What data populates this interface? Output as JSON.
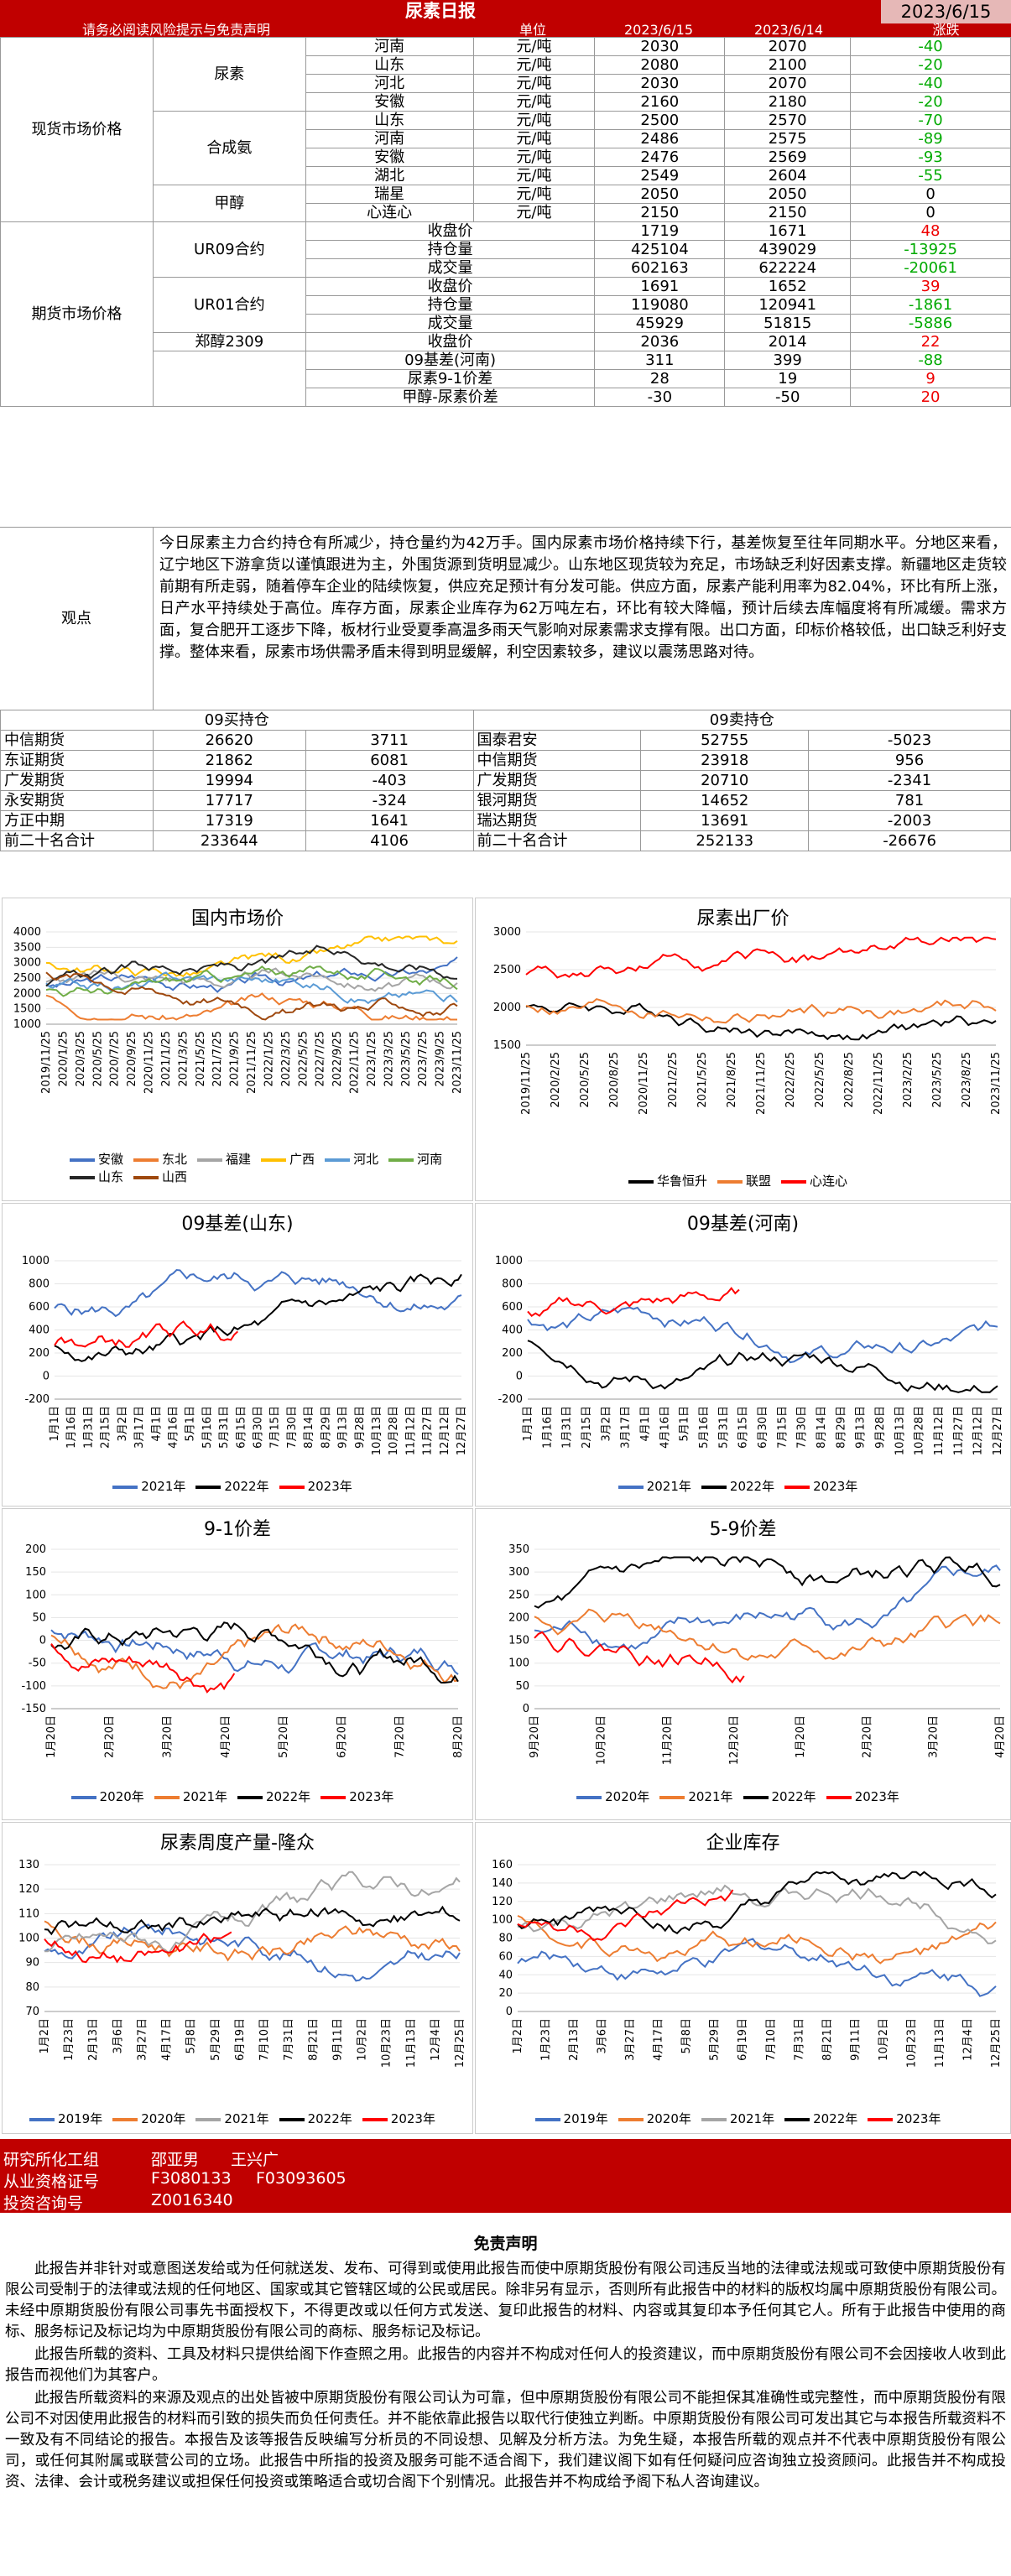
{
  "header": {
    "title": "尿素日报",
    "date": "2023/6/15",
    "note": "请务必阅读风险提示与免责声明",
    "col_unit": "单位",
    "col_d1": "2023/6/15",
    "col_d2": "2023/6/14",
    "col_chg": "涨跌"
  },
  "spot_label": "现货市场价格",
  "futures_label": "期货市场价格",
  "spot": [
    {
      "grp": "尿素",
      "name": "河南",
      "unit": "元/吨",
      "v1": "2030",
      "v2": "2070",
      "chg": "-40"
    },
    {
      "grp": "",
      "name": "山东",
      "unit": "元/吨",
      "v1": "2080",
      "v2": "2100",
      "chg": "-20"
    },
    {
      "grp": "",
      "name": "河北",
      "unit": "元/吨",
      "v1": "2030",
      "v2": "2070",
      "chg": "-40"
    },
    {
      "grp": "",
      "name": "安徽",
      "unit": "元/吨",
      "v1": "2160",
      "v2": "2180",
      "chg": "-20"
    },
    {
      "grp": "合成氨",
      "name": "山东",
      "unit": "元/吨",
      "v1": "2500",
      "v2": "2570",
      "chg": "-70"
    },
    {
      "grp": "",
      "name": "河南",
      "unit": "元/吨",
      "v1": "2486",
      "v2": "2575",
      "chg": "-89"
    },
    {
      "grp": "",
      "name": "安徽",
      "unit": "元/吨",
      "v1": "2476",
      "v2": "2569",
      "chg": "-93"
    },
    {
      "grp": "",
      "name": "湖北",
      "unit": "元/吨",
      "v1": "2549",
      "v2": "2604",
      "chg": "-55"
    },
    {
      "grp": "甲醇",
      "name": "瑞星",
      "unit": "元/吨",
      "v1": "2050",
      "v2": "2050",
      "chg": "0"
    },
    {
      "grp": "",
      "name": "心连心",
      "unit": "元/吨",
      "v1": "2150",
      "v2": "2150",
      "chg": "0"
    }
  ],
  "futures": [
    {
      "grp": "UR09合约",
      "name": "收盘价",
      "v1": "1719",
      "v2": "1671",
      "chg": "48"
    },
    {
      "grp": "",
      "name": "持仓量",
      "v1": "425104",
      "v2": "439029",
      "chg": "-13925"
    },
    {
      "grp": "",
      "name": "成交量",
      "v1": "602163",
      "v2": "622224",
      "chg": "-20061"
    },
    {
      "grp": "UR01合约",
      "name": "收盘价",
      "v1": "1691",
      "v2": "1652",
      "chg": "39"
    },
    {
      "grp": "",
      "name": "持仓量",
      "v1": "119080",
      "v2": "120941",
      "chg": "-1861"
    },
    {
      "grp": "",
      "name": "成交量",
      "v1": "45929",
      "v2": "51815",
      "chg": "-5886"
    },
    {
      "grp": "郑醇2309",
      "name": "收盘价",
      "v1": "2036",
      "v2": "2014",
      "chg": "22"
    },
    {
      "grp": "",
      "name": "09基差(河南)",
      "v1": "311",
      "v2": "399",
      "chg": "-88"
    },
    {
      "grp": "",
      "name": "尿素9-1价差",
      "v1": "28",
      "v2": "19",
      "chg": "9"
    },
    {
      "grp": "",
      "name": "甲醇-尿素价差",
      "v1": "-30",
      "v2": "-50",
      "chg": "20"
    }
  ],
  "observation": {
    "label": "观点",
    "text": "今日尿素主力合约持仓有所减少，持仓量约为42万手。国内尿素市场价格持续下行，基差恢复至往年同期水平。分地区来看，辽宁地区下游拿货以谨慎跟进为主，外围货源到货明显减少。山东地区现货较为充足，市场缺乏利好因素支撑。新疆地区走货较前期有所走弱，随着停车企业的陆续恢复，供应充足预计有分发可能。供应方面，尿素产能利用率为82.04%，环比有所上涨，日产水平持续处于高位。库存方面，尿素企业库存为62万吨左右，环比有较大降幅，预计后续去库幅度将有所减缓。需求方面，复合肥开工逐步下降，板材行业受夏季高温多雨天气影响对尿素需求支撑有限。出口方面，印标价格较低，出口缺乏利好支撑。整体来看，尿素市场供需矛盾未得到明显缓解，利空因素较多，建议以震荡思路对待。"
  },
  "positions": {
    "buy_title": "09买持仓",
    "sell_title": "09卖持仓",
    "buy": [
      [
        "中信期货",
        "26620",
        "3711"
      ],
      [
        "东证期货",
        "21862",
        "6081"
      ],
      [
        "广发期货",
        "19994",
        "-403"
      ],
      [
        "永安期货",
        "17717",
        "-324"
      ],
      [
        "方正中期",
        "17319",
        "1641"
      ],
      [
        "前二十名合计",
        "233644",
        "4106"
      ]
    ],
    "sell": [
      [
        "国泰君安",
        "52755",
        "-5023"
      ],
      [
        "中信期货",
        "23918",
        "956"
      ],
      [
        "广发期货",
        "20710",
        "-2341"
      ],
      [
        "银河期货",
        "14652",
        "781"
      ],
      [
        "瑞达期货",
        "13691",
        "-2003"
      ],
      [
        "前二十名合计",
        "252133",
        "-26676"
      ]
    ]
  },
  "charts": {
    "c1": {
      "title": "国内市场价",
      "y_ticks": [
        "4000",
        "3500",
        "3000",
        "2500",
        "2000",
        "1500",
        "1000"
      ],
      "x_ticks": [
        "2019/11/25",
        "2020/1/25",
        "2020/3/25",
        "2020/5/25",
        "2020/7/25",
        "2020/9/25",
        "2020/11/25",
        "2021/1/25",
        "2021/3/25",
        "2021/5/25",
        "2021/7/25",
        "2021/9/25",
        "2021/11/25",
        "2022/1/25",
        "2022/3/25",
        "2022/5/25",
        "2022/7/25",
        "2022/9/25",
        "2022/11/25",
        "2023/1/25",
        "2023/3/25",
        "2023/5/25",
        "2023/7/25",
        "2023/9/25",
        "2023/11/25"
      ],
      "legend": [
        "安徽",
        "东北",
        "福建",
        "广西",
        "河北",
        "河南",
        "山东",
        "山西"
      ],
      "colors": [
        "#4472c4",
        "#ed7d31",
        "#a5a5a5",
        "#ffc000",
        "#5b9bd5",
        "#70ad47",
        "#262626",
        "#9e480e"
      ]
    },
    "c2": {
      "title": "尿素出厂价",
      "y_ticks": [
        "3000",
        "2500",
        "2000",
        "1500"
      ],
      "x_ticks": [
        "2019/11/25",
        "2020/2/25",
        "2020/5/25",
        "2020/8/25",
        "2020/11/25",
        "2021/2/25",
        "2021/5/25",
        "2021/8/25",
        "2021/11/25",
        "2022/2/25",
        "2022/5/25",
        "2022/8/25",
        "2022/11/25",
        "2023/2/25",
        "2023/5/25",
        "2023/8/25",
        "2023/11/25"
      ],
      "legend": [
        "华鲁恒升",
        "联盟",
        "心连心"
      ],
      "colors": [
        "#000000",
        "#ed7d31",
        "#ff0000"
      ]
    },
    "c3": {
      "title": "09基差(山东)",
      "y_ticks": [
        "1000",
        "800",
        "600",
        "400",
        "200",
        "0",
        "-200"
      ],
      "x_ticks": [
        "1月1日",
        "1月16日",
        "1月31日",
        "2月15日",
        "3月2日",
        "3月17日",
        "4月1日",
        "4月16日",
        "5月1日",
        "5月16日",
        "5月31日",
        "6月15日",
        "6月30日",
        "7月15日",
        "7月30日",
        "8月14日",
        "8月29日",
        "9月13日",
        "9月28日",
        "10月13日",
        "10月28日",
        "11月12日",
        "11月27日",
        "12月12日",
        "12月27日"
      ],
      "legend": [
        "2021年",
        "2022年",
        "2023年"
      ],
      "colors": [
        "#4472c4",
        "#000000",
        "#ff0000"
      ]
    },
    "c4": {
      "title": "09基差(河南)",
      "y_ticks": [
        "1000",
        "800",
        "600",
        "400",
        "200",
        "0",
        "-200"
      ],
      "x_ticks": [
        "1月1日",
        "1月16日",
        "1月31日",
        "2月15日",
        "3月2日",
        "3月17日",
        "4月1日",
        "4月16日",
        "5月1日",
        "5月16日",
        "5月31日",
        "6月15日",
        "6月30日",
        "7月15日",
        "7月30日",
        "8月14日",
        "8月29日",
        "9月13日",
        "9月28日",
        "10月13日",
        "10月28日",
        "11月12日",
        "11月27日",
        "12月12日",
        "12月27日"
      ],
      "legend": [
        "2021年",
        "2022年",
        "2023年"
      ],
      "colors": [
        "#4472c4",
        "#000000",
        "#ff0000"
      ]
    },
    "c5": {
      "title": "9-1价差",
      "y_ticks": [
        "200",
        "150",
        "100",
        "50",
        "0",
        "-50",
        "-100",
        "-150"
      ],
      "x_ticks": [
        "1月20日",
        "2月20日",
        "3月20日",
        "4月20日",
        "5月20日",
        "6月20日",
        "7月20日",
        "8月20日"
      ],
      "legend": [
        "2020年",
        "2021年",
        "2022年",
        "2023年"
      ],
      "colors": [
        "#4472c4",
        "#ed7d31",
        "#000000",
        "#ff0000"
      ]
    },
    "c6": {
      "title": "5-9价差",
      "y_ticks": [
        "350",
        "300",
        "250",
        "200",
        "150",
        "100",
        "50",
        "0"
      ],
      "x_ticks": [
        "9月20日",
        "10月20日",
        "11月20日",
        "12月20日",
        "1月20日",
        "2月20日",
        "3月20日",
        "4月20日"
      ],
      "legend": [
        "2020年",
        "2021年",
        "2022年",
        "2023年"
      ],
      "colors": [
        "#4472c4",
        "#ed7d31",
        "#000000",
        "#ff0000"
      ]
    },
    "c7": {
      "title": "尿素周度产量-隆众",
      "y_ticks": [
        "130",
        "120",
        "110",
        "100",
        "90",
        "80",
        "70"
      ],
      "x_ticks": [
        "1月2日",
        "1月23日",
        "2月13日",
        "3月6日",
        "3月27日",
        "4月17日",
        "5月8日",
        "5月29日",
        "6月19日",
        "7月10日",
        "7月31日",
        "8月21日",
        "9月11日",
        "10月2日",
        "10月23日",
        "11月13日",
        "12月4日",
        "12月25日"
      ],
      "legend": [
        "2019年",
        "2020年",
        "2021年",
        "2022年",
        "2023年"
      ],
      "colors": [
        "#4472c4",
        "#ed7d31",
        "#a5a5a5",
        "#000000",
        "#ff0000"
      ]
    },
    "c8": {
      "title": "企业库存",
      "y_ticks": [
        "160",
        "140",
        "120",
        "100",
        "80",
        "60",
        "40",
        "20",
        "0"
      ],
      "x_ticks": [
        "1月2日",
        "1月23日",
        "2月13日",
        "3月6日",
        "3月27日",
        "4月17日",
        "5月8日",
        "5月29日",
        "6月19日",
        "7月10日",
        "7月31日",
        "8月21日",
        "9月11日",
        "10月2日",
        "10月23日",
        "11月13日",
        "12月4日",
        "12月25日"
      ],
      "legend": [
        "2019年",
        "2020年",
        "2021年",
        "2022年",
        "2023年"
      ],
      "colors": [
        "#4472c4",
        "#ed7d31",
        "#a5a5a5",
        "#000000",
        "#ff0000"
      ]
    }
  },
  "footer": {
    "dept": "研究所化工组",
    "names": "邵亚男　　王兴广",
    "cert_label": "从业资格证号",
    "cert1": "F3080133",
    "cert2": "F03093605",
    "inv_label": "投资咨询号",
    "inv": "Z0016340"
  },
  "disclaimer": {
    "title": "免责声明",
    "p1": "此报告并非针对或意图送发给或为任何就送发、发布、可得到或使用此报告而使中原期货股份有限公司违反当地的法律或法规或可致使中原期货股份有限公司受制于的法律或法规的任何地区、国家或其它管辖区域的公民或居民。除非另有显示，否则所有此报告中的材料的版权均属中原期货股份有限公司。未经中原期货股份有限公司事先书面授权下，不得更改或以任何方式发送、复印此报告的材料、内容或其复印本予任何其它人。所有于此报告中使用的商标、服务标记及标记均为中原期货股份有限公司的商标、服务标记及标记。",
    "p2": "此报告所载的资料、工具及材料只提供给阁下作查照之用。此报告的内容并不构成对任何人的投资建议，而中原期货股份有限公司不会因接收人收到此报告而视他们为其客户。",
    "p3": "此报告所载资料的来源及观点的出处皆被中原期货股份有限公司认为可靠，但中原期货股份有限公司不能担保其准确性或完整性，而中原期货股份有限公司不对因使用此报告的材料而引致的损失而负任何责任。并不能依靠此报告以取代行使独立判断。中原期货股份有限公司可发出其它与本报告所载资料不一致及有不同结论的报告。本报告及该等报告反映编写分析员的不同设想、见解及分析方法。为免生疑，本报告所载的观点并不代表中原期货股份有限公司，或任何其附属或联营公司的立场。此报告中所指的投资及服务可能不适合阁下，我们建议阁下如有任何疑问应咨询独立投资顾问。此报告并不构成投资、法律、会计或税务建议或担保任何投资或策略适合或切合阁下个别情况。此报告并不构成给予阁下私人咨询建议。"
  }
}
